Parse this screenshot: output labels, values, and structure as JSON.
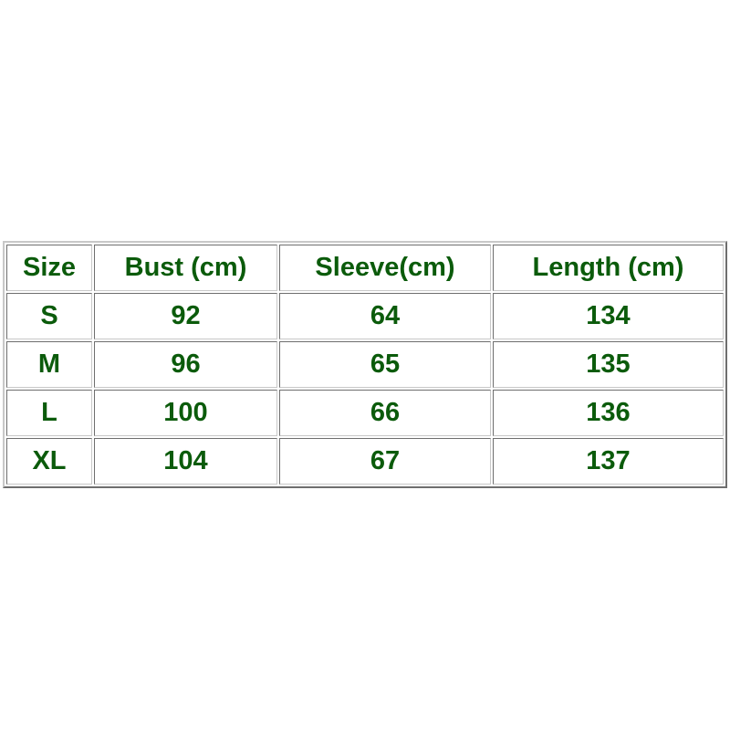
{
  "table": {
    "headers": [
      "Size",
      "Bust (cm)",
      "Sleeve(cm)",
      "Length (cm)"
    ],
    "rows": [
      [
        "S",
        "92",
        "64",
        "134"
      ],
      [
        "M",
        "96",
        "65",
        "135"
      ],
      [
        "L",
        "100",
        "66",
        "136"
      ],
      [
        "XL",
        "104",
        "67",
        "137"
      ]
    ]
  },
  "colors": {
    "text": "#0b5b0b",
    "border": "#6e6e6e"
  }
}
